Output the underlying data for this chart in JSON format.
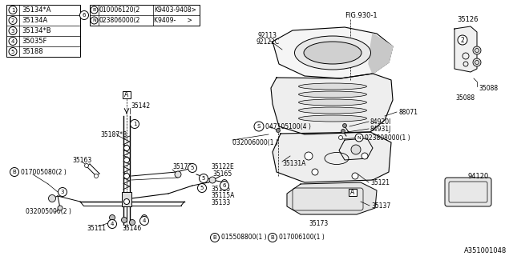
{
  "bg_color": "#ffffff",
  "fig_width": 6.4,
  "fig_height": 3.2,
  "dpi": 100,
  "part_number_label": "A351001048",
  "legend_entries": [
    {
      "num": "1",
      "part": "35134*A"
    },
    {
      "num": "2",
      "part": "35134A"
    },
    {
      "num": "3",
      "part": "35134*B"
    },
    {
      "num": "4",
      "part": "35035F"
    },
    {
      "num": "5",
      "part": "35188"
    }
  ],
  "legend_ref_num": "6",
  "legend_ref_rows": [
    {
      "prefix": "B",
      "part": "010006120",
      "qty": "2",
      "date": "K9403-9408>"
    },
    {
      "prefix": "N",
      "part": "023806000",
      "qty": "2",
      "date": "K9409-      >"
    }
  ],
  "fig_label": "FIG.930-1",
  "line_color": "#000000",
  "text_color": "#000000"
}
